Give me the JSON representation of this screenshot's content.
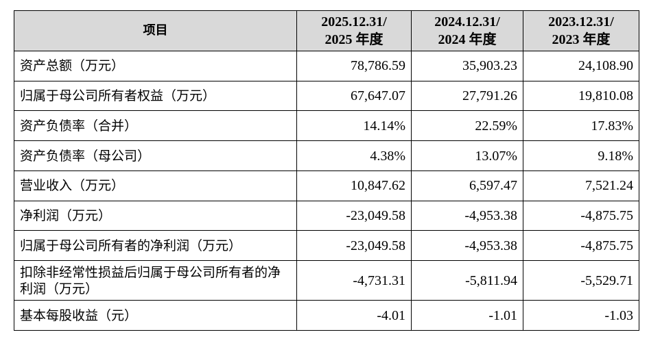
{
  "table": {
    "header": {
      "item": "项目",
      "periods": [
        {
          "line1": "2025.12.31/",
          "line2": "2025 年度"
        },
        {
          "line1": "2024.12.31/",
          "line2": "2024 年度"
        },
        {
          "line1": "2023.12.31/",
          "line2": "2023 年度"
        }
      ]
    },
    "rows": [
      {
        "label": "资产总额（万元）",
        "values": [
          "78,786.59",
          "35,903.23",
          "24,108.90"
        ]
      },
      {
        "label": "归属于母公司所有者权益（万元）",
        "values": [
          "67,647.07",
          "27,791.26",
          "19,810.08"
        ]
      },
      {
        "label": "资产负债率（合并）",
        "values": [
          "14.14%",
          "22.59%",
          "17.83%"
        ]
      },
      {
        "label": "资产负债率（母公司）",
        "values": [
          "4.38%",
          "13.07%",
          "9.18%"
        ]
      },
      {
        "label": "营业收入（万元）",
        "values": [
          "10,847.62",
          "6,597.47",
          "7,521.24"
        ]
      },
      {
        "label": "净利润（万元）",
        "values": [
          "-23,049.58",
          "-4,953.38",
          "-4,875.75"
        ]
      },
      {
        "label": "归属于母公司所有者的净利润（万元）",
        "values": [
          "-23,049.58",
          "-4,953.38",
          "-4,875.75"
        ]
      },
      {
        "label": "扣除非经常性损益后归属于母公司所有者的净利润（万元）",
        "values": [
          "-4,731.31",
          "-5,811.94",
          "-5,529.71"
        ]
      },
      {
        "label": "基本每股收益（元）",
        "values": [
          "-4.01",
          "-1.01",
          "-1.03"
        ]
      }
    ]
  }
}
